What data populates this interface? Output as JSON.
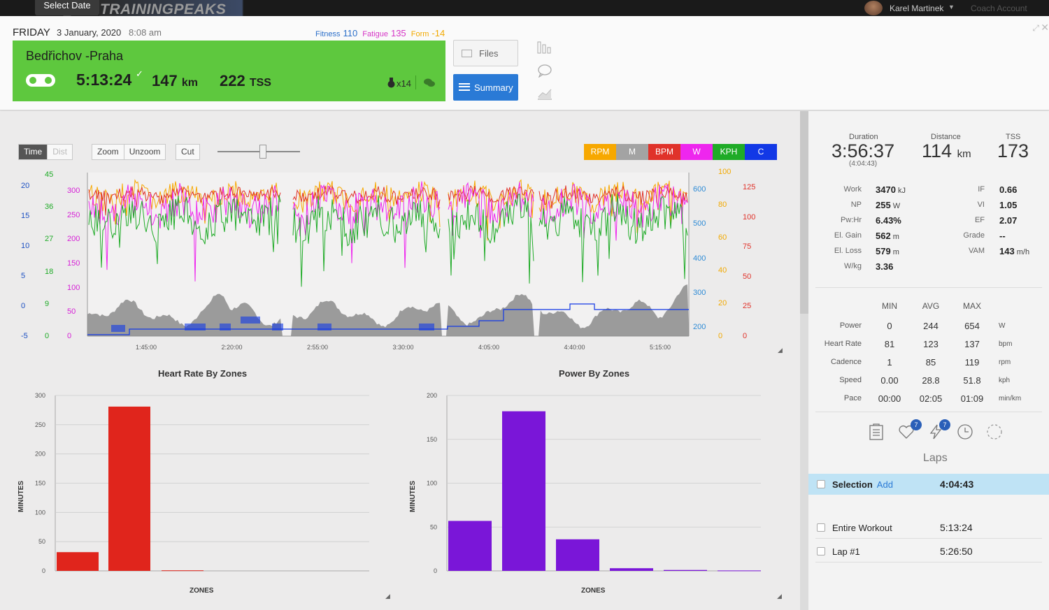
{
  "topbar": {
    "tooltip": "Select Date",
    "logo": "TRAININGPEAKS",
    "user": "Karel Martinek",
    "coach_account": "Coach Account"
  },
  "workout": {
    "day": "FRIDAY",
    "date": "3 January, 2020",
    "time": "8:08 am",
    "fitness_label": "Fitness",
    "fitness_value": "110",
    "fatigue_label": "Fatigue",
    "fatigue_value": "135",
    "form_label": "Form",
    "form_value": "-14",
    "title": "Bedřichov -Praha",
    "duration": "5:13:24",
    "distance": "147",
    "distance_unit": "km",
    "tss": "222",
    "tss_unit": "TSS",
    "medal_count": "x14",
    "files_label": "Files",
    "summary_label": "Summary"
  },
  "toolbar": {
    "time": "Time",
    "dist": "Dist",
    "zoom": "Zoom",
    "unzoom": "Unzoom",
    "cut": "Cut",
    "zoom_slider_level": 0.55,
    "channels": [
      {
        "label": "RPM",
        "color": "#f7a800"
      },
      {
        "label": "M",
        "color": "#a3a3a3"
      },
      {
        "label": "BPM",
        "color": "#e0322a"
      },
      {
        "label": "W",
        "color": "#ee26ee"
      },
      {
        "label": "KPH",
        "color": "#1fab27"
      },
      {
        "label": "C",
        "color": "#1238e6"
      }
    ]
  },
  "chart_data": [
    {
      "type": "line",
      "x_ticks": [
        "1:45:00",
        "2:20:00",
        "2:55:00",
        "3:30:00",
        "4:05:00",
        "4:40:00",
        "5:15:00"
      ],
      "axes": {
        "left_blue": [
          "20",
          "15",
          "10",
          "5",
          "0",
          "-5"
        ],
        "left_green": [
          "45",
          "36",
          "27",
          "18",
          "9",
          "0"
        ],
        "left_magenta": [
          "300",
          "250",
          "200",
          "150",
          "100",
          "50",
          "0"
        ],
        "right_blue": [
          "600",
          "500",
          "400",
          "300",
          "200"
        ],
        "right_orange": [
          "100",
          "80",
          "60",
          "40",
          "20",
          "0"
        ],
        "right_red": [
          "125",
          "100",
          "75",
          "50",
          "25",
          "0"
        ]
      },
      "series": [
        {
          "name": "RPM",
          "color": "#f7a800"
        },
        {
          "name": "W",
          "color": "#ee26ee"
        },
        {
          "name": "KPH",
          "color": "#1fab27"
        },
        {
          "name": "BPM",
          "color": "#e0322a"
        },
        {
          "name": "M",
          "color": "#8c8c8c"
        },
        {
          "name": "C",
          "color": "#1238e6"
        }
      ]
    },
    {
      "type": "bar",
      "title": "Heart Rate By Zones",
      "xlabel": "ZONES",
      "ylabel": "MINUTES",
      "ylim": [
        0,
        300
      ],
      "yticks": [
        "300",
        "250",
        "200",
        "150",
        "100",
        "50",
        "0"
      ],
      "values": [
        32,
        281,
        1
      ],
      "color": "#e0251c"
    },
    {
      "type": "bar",
      "title": "Power By Zones",
      "xlabel": "ZONES",
      "ylabel": "MINUTES",
      "ylim": [
        0,
        200
      ],
      "yticks": [
        "200",
        "150",
        "100",
        "50",
        "0"
      ],
      "values": [
        57,
        182,
        36,
        3,
        1,
        0.5
      ],
      "color": "#7a16d8"
    }
  ],
  "summary": {
    "duration_label": "Duration",
    "duration_value": "3:56:37",
    "duration_sub": "(4:04:43)",
    "distance_label": "Distance",
    "distance_value": "114",
    "distance_unit": "km",
    "tss_label": "TSS",
    "tss_value": "173",
    "left_stats": [
      {
        "label": "Work",
        "value": "3470",
        "unit": "kJ"
      },
      {
        "label": "NP",
        "value": "255",
        "unit": "W"
      },
      {
        "label": "Pw:Hr",
        "value": "6.43%",
        "unit": ""
      },
      {
        "label": "El. Gain",
        "value": "562",
        "unit": "m"
      },
      {
        "label": "El. Loss",
        "value": "579",
        "unit": "m"
      },
      {
        "label": "W/kg",
        "value": "3.36",
        "unit": ""
      }
    ],
    "right_stats": [
      {
        "label": "IF",
        "value": "0.66",
        "unit": ""
      },
      {
        "label": "VI",
        "value": "1.05",
        "unit": ""
      },
      {
        "label": "EF",
        "value": "2.07",
        "unit": ""
      },
      {
        "label": "Grade",
        "value": "--",
        "unit": ""
      },
      {
        "label": "VAM",
        "value": "143",
        "unit": "m/h"
      }
    ],
    "table_headers": [
      "MIN",
      "AVG",
      "MAX"
    ],
    "table_rows": [
      {
        "label": "Power",
        "min": "0",
        "avg": "244",
        "max": "654",
        "unit": "W"
      },
      {
        "label": "Heart Rate",
        "min": "81",
        "avg": "123",
        "max": "137",
        "unit": "bpm"
      },
      {
        "label": "Cadence",
        "min": "1",
        "avg": "85",
        "max": "119",
        "unit": "rpm"
      },
      {
        "label": "Speed",
        "min": "0.00",
        "avg": "28.8",
        "max": "51.8",
        "unit": "kph"
      },
      {
        "label": "Pace",
        "min": "00:00",
        "avg": "02:05",
        "max": "01:09",
        "unit": "min/km"
      }
    ],
    "badge_1": "7",
    "badge_2": "7",
    "laps_title": "Laps",
    "laps": [
      {
        "name": "Selection",
        "add": "Add",
        "time": "4:04:43",
        "selected": true
      },
      {
        "name": "Entire Workout",
        "time": "5:13:24",
        "selected": false
      },
      {
        "name": "Lap #1",
        "time": "5:26:50",
        "selected": false
      }
    ]
  }
}
